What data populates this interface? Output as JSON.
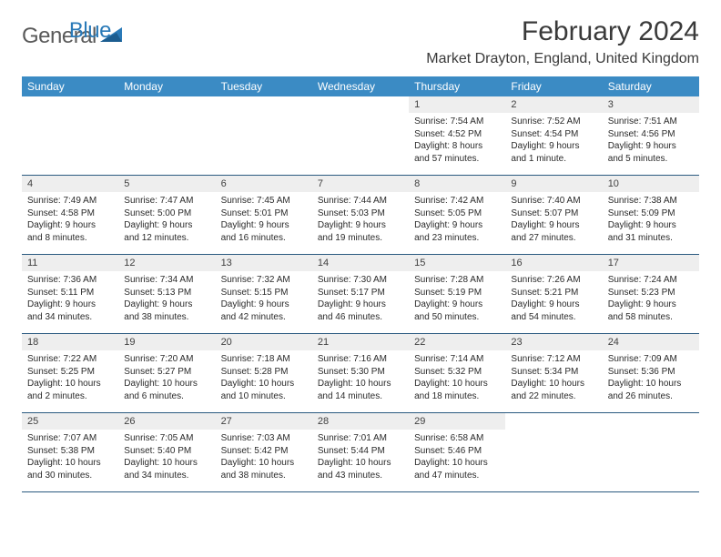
{
  "brand": {
    "name1": "General",
    "name2": "Blue"
  },
  "title": "February 2024",
  "location": "Market Drayton, England, United Kingdom",
  "colors": {
    "header_bg": "#3b8bc4",
    "header_text": "#ffffff",
    "daynum_bg": "#eeeeee",
    "border": "#2a5a80",
    "logo_gray": "#5a5a5a",
    "logo_blue": "#2a7ab8"
  },
  "dow": [
    "Sunday",
    "Monday",
    "Tuesday",
    "Wednesday",
    "Thursday",
    "Friday",
    "Saturday"
  ],
  "weeks": [
    [
      null,
      null,
      null,
      null,
      {
        "n": "1",
        "sr": "7:54 AM",
        "ss": "4:52 PM",
        "dl": "8 hours and 57 minutes."
      },
      {
        "n": "2",
        "sr": "7:52 AM",
        "ss": "4:54 PM",
        "dl": "9 hours and 1 minute."
      },
      {
        "n": "3",
        "sr": "7:51 AM",
        "ss": "4:56 PM",
        "dl": "9 hours and 5 minutes."
      }
    ],
    [
      {
        "n": "4",
        "sr": "7:49 AM",
        "ss": "4:58 PM",
        "dl": "9 hours and 8 minutes."
      },
      {
        "n": "5",
        "sr": "7:47 AM",
        "ss": "5:00 PM",
        "dl": "9 hours and 12 minutes."
      },
      {
        "n": "6",
        "sr": "7:45 AM",
        "ss": "5:01 PM",
        "dl": "9 hours and 16 minutes."
      },
      {
        "n": "7",
        "sr": "7:44 AM",
        "ss": "5:03 PM",
        "dl": "9 hours and 19 minutes."
      },
      {
        "n": "8",
        "sr": "7:42 AM",
        "ss": "5:05 PM",
        "dl": "9 hours and 23 minutes."
      },
      {
        "n": "9",
        "sr": "7:40 AM",
        "ss": "5:07 PM",
        "dl": "9 hours and 27 minutes."
      },
      {
        "n": "10",
        "sr": "7:38 AM",
        "ss": "5:09 PM",
        "dl": "9 hours and 31 minutes."
      }
    ],
    [
      {
        "n": "11",
        "sr": "7:36 AM",
        "ss": "5:11 PM",
        "dl": "9 hours and 34 minutes."
      },
      {
        "n": "12",
        "sr": "7:34 AM",
        "ss": "5:13 PM",
        "dl": "9 hours and 38 minutes."
      },
      {
        "n": "13",
        "sr": "7:32 AM",
        "ss": "5:15 PM",
        "dl": "9 hours and 42 minutes."
      },
      {
        "n": "14",
        "sr": "7:30 AM",
        "ss": "5:17 PM",
        "dl": "9 hours and 46 minutes."
      },
      {
        "n": "15",
        "sr": "7:28 AM",
        "ss": "5:19 PM",
        "dl": "9 hours and 50 minutes."
      },
      {
        "n": "16",
        "sr": "7:26 AM",
        "ss": "5:21 PM",
        "dl": "9 hours and 54 minutes."
      },
      {
        "n": "17",
        "sr": "7:24 AM",
        "ss": "5:23 PM",
        "dl": "9 hours and 58 minutes."
      }
    ],
    [
      {
        "n": "18",
        "sr": "7:22 AM",
        "ss": "5:25 PM",
        "dl": "10 hours and 2 minutes."
      },
      {
        "n": "19",
        "sr": "7:20 AM",
        "ss": "5:27 PM",
        "dl": "10 hours and 6 minutes."
      },
      {
        "n": "20",
        "sr": "7:18 AM",
        "ss": "5:28 PM",
        "dl": "10 hours and 10 minutes."
      },
      {
        "n": "21",
        "sr": "7:16 AM",
        "ss": "5:30 PM",
        "dl": "10 hours and 14 minutes."
      },
      {
        "n": "22",
        "sr": "7:14 AM",
        "ss": "5:32 PM",
        "dl": "10 hours and 18 minutes."
      },
      {
        "n": "23",
        "sr": "7:12 AM",
        "ss": "5:34 PM",
        "dl": "10 hours and 22 minutes."
      },
      {
        "n": "24",
        "sr": "7:09 AM",
        "ss": "5:36 PM",
        "dl": "10 hours and 26 minutes."
      }
    ],
    [
      {
        "n": "25",
        "sr": "7:07 AM",
        "ss": "5:38 PM",
        "dl": "10 hours and 30 minutes."
      },
      {
        "n": "26",
        "sr": "7:05 AM",
        "ss": "5:40 PM",
        "dl": "10 hours and 34 minutes."
      },
      {
        "n": "27",
        "sr": "7:03 AM",
        "ss": "5:42 PM",
        "dl": "10 hours and 38 minutes."
      },
      {
        "n": "28",
        "sr": "7:01 AM",
        "ss": "5:44 PM",
        "dl": "10 hours and 43 minutes."
      },
      {
        "n": "29",
        "sr": "6:58 AM",
        "ss": "5:46 PM",
        "dl": "10 hours and 47 minutes."
      },
      null,
      null
    ]
  ],
  "labels": {
    "sunrise": "Sunrise:",
    "sunset": "Sunset:",
    "daylight": "Daylight:"
  }
}
